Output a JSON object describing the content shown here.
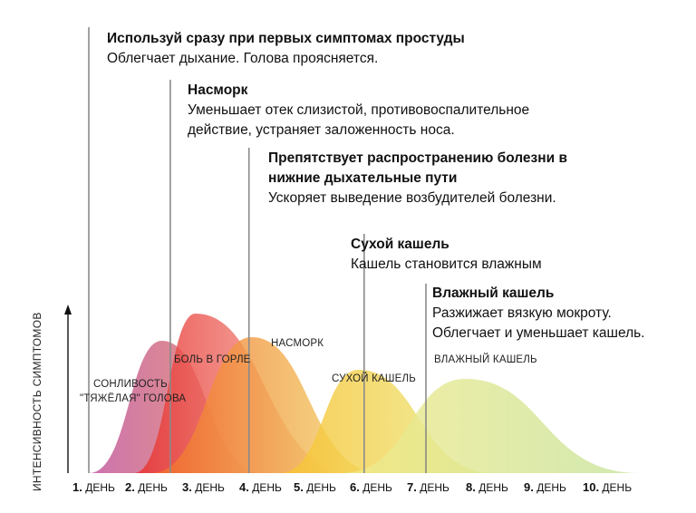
{
  "chart_data": {
    "type": "area",
    "categories": [
      "1. ДЕНЬ",
      "2. ДЕНЬ",
      "3. ДЕНЬ",
      "4. ДЕНЬ",
      "5. ДЕНЬ",
      "6. ДЕНЬ",
      "7. ДЕНЬ",
      "8. ДЕНЬ",
      "9. ДЕНЬ",
      "10. ДЕНЬ"
    ],
    "x_ticks": [
      {
        "num": "1.",
        "word": "ДЕНЬ"
      },
      {
        "num": "2.",
        "word": "ДЕНЬ"
      },
      {
        "num": "3.",
        "word": "ДЕНЬ"
      },
      {
        "num": "4.",
        "word": "ДЕНЬ"
      },
      {
        "num": "5.",
        "word": "ДЕНЬ"
      },
      {
        "num": "6.",
        "word": "ДЕНЬ"
      },
      {
        "num": "7.",
        "word": "ДЕНЬ"
      },
      {
        "num": "8.",
        "word": "ДЕНЬ"
      },
      {
        "num": "9.",
        "word": "ДЕНЬ"
      },
      {
        "num": "10.",
        "word": "ДЕНЬ"
      }
    ],
    "ylabel": "ИНТЕНСИВНОСТЬ СИМПТОМОВ",
    "series": [
      {
        "name": "СОНЛИВОСТЬ \"ТЯЖЁЛАЯ\" ГОЛОВА",
        "start": 1.0,
        "peak": 2.3,
        "end": 4.1,
        "intensity": 0.73,
        "colors": [
          "#c0549e",
          "#e8885a"
        ]
      },
      {
        "name": "БОЛЬ В ГОРЛЕ",
        "start": 1.8,
        "peak": 2.9,
        "end": 5.7,
        "intensity": 0.88,
        "colors": [
          "#e82e2a",
          "#f6c8bc"
        ]
      },
      {
        "name": "НАСМОРК",
        "start": 2.1,
        "peak": 3.9,
        "end": 6.2,
        "intensity": 0.75,
        "colors": [
          "#f26b2a",
          "#f2e070"
        ]
      },
      {
        "name": "СУХОЙ КАШЕЛЬ",
        "start": 4.4,
        "peak": 5.8,
        "end": 8.2,
        "intensity": 0.57,
        "colors": [
          "#f8c230",
          "#eaed8c"
        ]
      },
      {
        "name": "ВЛАЖНЫЙ КАШЕЛЬ",
        "start": 5.5,
        "peak": 7.7,
        "end": 10.8,
        "intensity": 0.52,
        "colors": [
          "#f2ea8a",
          "#c8e4a0"
        ]
      }
    ],
    "markers": [
      1.0,
      2.45,
      3.85,
      5.9,
      7.0
    ]
  },
  "annotations": [
    {
      "title": "Используй сразу при первых симптомах простуды",
      "lines": [
        "Облегчает дыхание. Голова проясняется."
      ]
    },
    {
      "title": "Насморк",
      "lines": [
        "Уменьшает отек слизистой, противовоспалительное",
        "действие, устраняет заложенность носа."
      ]
    },
    {
      "title": "Препятствует распространению болезни в",
      "title2": "нижние дыхательные пути",
      "lines": [
        "Ускоряет выведение возбудителей болезни."
      ]
    },
    {
      "title": "Сухой кашель",
      "lines": [
        "Кашель становится влажным"
      ]
    },
    {
      "title": "Влажный кашель",
      "lines": [
        "Разжижает вязкую мокроту.",
        "Облегчает и уменьшает кашель."
      ]
    }
  ],
  "series_labels": {
    "drowsy_1": "СОНЛИВОСТЬ",
    "drowsy_2": "\"ТЯЖЁЛАЯ\" ГОЛОВА",
    "throat": "БОЛЬ В ГОРЛЕ",
    "runny": "НАСМОРК",
    "dry": "СУХОЙ КАШЕЛЬ",
    "wet": "ВЛАЖНЫЙ КАШЕЛЬ"
  }
}
